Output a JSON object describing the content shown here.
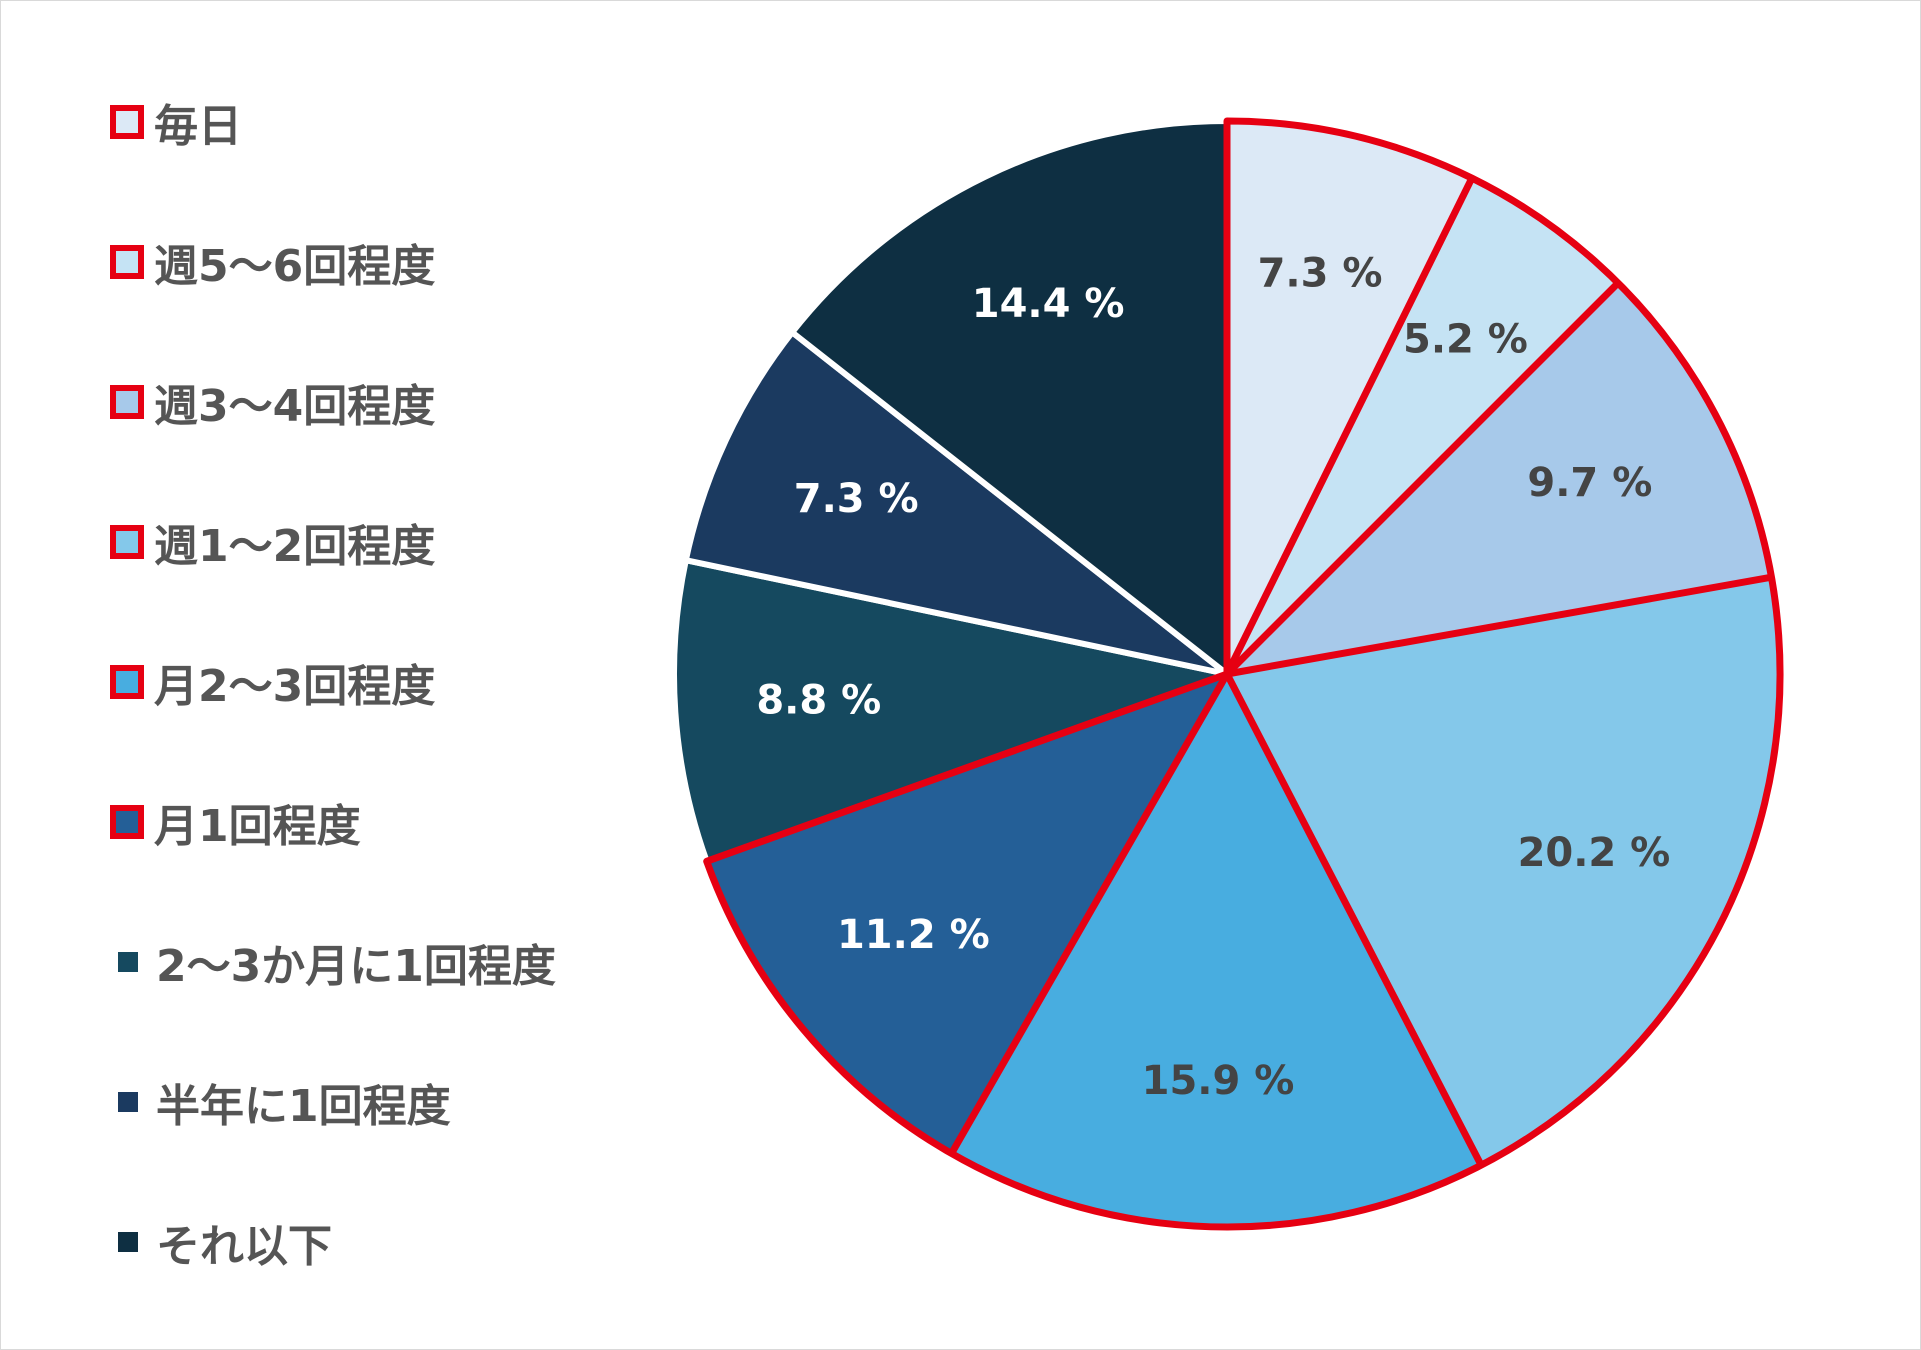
{
  "chart_data": {
    "type": "pie",
    "categories": [
      "毎日",
      "週5〜6回程度",
      "週3〜4回程度",
      "週1〜2回程度",
      "月2〜3回程度",
      "月1回程度",
      "2〜3か月に1回程度",
      "半年に1回程度",
      "それ以下"
    ],
    "values": [
      7.3,
      5.2,
      9.7,
      20.2,
      15.9,
      11.2,
      8.8,
      7.3,
      14.4
    ],
    "value_labels": [
      "7.3 %",
      "5.2 %",
      "9.7 %",
      "20.2 %",
      "15.9 %",
      "11.2 %",
      "8.8 %",
      "7.3 %",
      "14.4 %"
    ],
    "colors": [
      "#dce9f6",
      "#c5e3f4",
      "#a7c9ea",
      "#84c8ea",
      "#48ade0",
      "#245f97",
      "#15495f",
      "#1b3a60",
      "#0e2f42"
    ],
    "label_colors": [
      "#444444",
      "#444444",
      "#444444",
      "#444444",
      "#444444",
      "#ffffff",
      "#ffffff",
      "#ffffff",
      "#ffffff"
    ],
    "highlighted": [
      true,
      true,
      true,
      true,
      true,
      true,
      false,
      false,
      false
    ],
    "highlight_color": "#e60012",
    "legend_position": "left",
    "start_angle": "12 o'clock, clockwise",
    "title": "",
    "legend": [
      {
        "label": "毎日"
      },
      {
        "label": "週5〜6回程度"
      },
      {
        "label": "週3〜4回程度"
      },
      {
        "label": "週1〜2回程度"
      },
      {
        "label": "月2〜3回程度"
      },
      {
        "label": "月1回程度"
      },
      {
        "label": "2〜3か月に1回程度"
      },
      {
        "label": "半年に1回程度"
      },
      {
        "label": "それ以下"
      }
    ]
  }
}
